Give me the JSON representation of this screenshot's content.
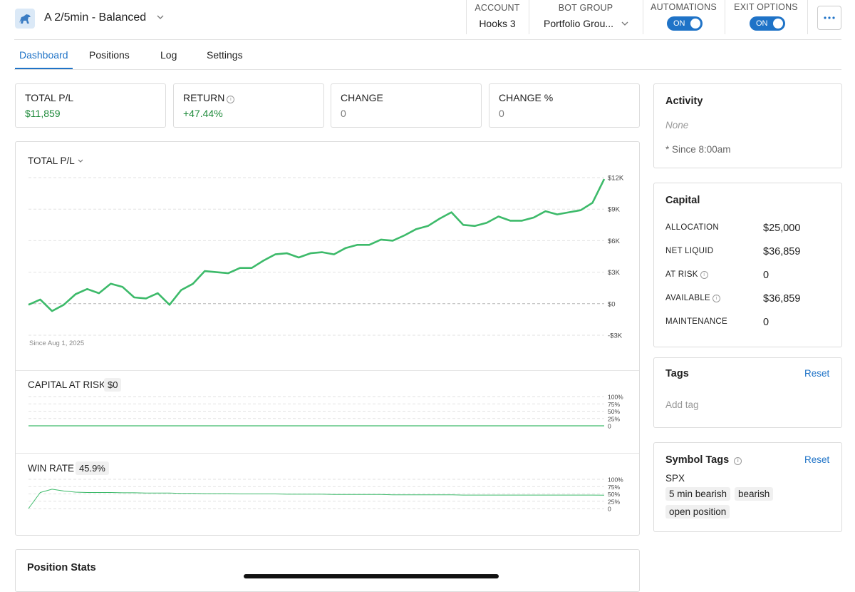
{
  "header": {
    "title": "A 2/5min - Balanced",
    "account_label": "ACCOUNT",
    "account": "Hooks 3",
    "bot_group_label": "BOT GROUP",
    "bot_group": "Portfolio Grou...",
    "automations_label": "AUTOMATIONS",
    "automations": "ON",
    "exit_options_label": "EXIT OPTIONS",
    "exit_options": "ON"
  },
  "tabs": [
    "Dashboard",
    "Positions",
    "Log",
    "Settings"
  ],
  "stats": [
    {
      "label": "TOTAL P/L",
      "value": "$11,859"
    },
    {
      "label": "RETURN",
      "value": "+47.44%"
    },
    {
      "label": "CHANGE",
      "value": "0"
    },
    {
      "label": "CHANGE %",
      "value": "0"
    }
  ],
  "pl_chart": {
    "type": "line",
    "title": "TOTAL P/L",
    "note": "Since Aug 1, 2025",
    "color": "#3dba6a",
    "ylim": [
      -3000,
      12000
    ],
    "yticks": [
      {
        "value": 12000,
        "label": "$12K"
      },
      {
        "value": 9000,
        "label": "$9K"
      },
      {
        "value": 6000,
        "label": "$6K"
      },
      {
        "value": 3000,
        "label": "$3K"
      },
      {
        "value": 0,
        "label": "$0"
      },
      {
        "value": -3000,
        "label": "-$3K"
      }
    ],
    "values": [
      -100,
      400,
      -700,
      -100,
      900,
      1400,
      1000,
      1900,
      1600,
      600,
      500,
      1000,
      -100,
      1300,
      1900,
      3100,
      3000,
      2900,
      3400,
      3400,
      4100,
      4700,
      4800,
      4400,
      4800,
      4900,
      4700,
      5300,
      5600,
      5600,
      6100,
      6000,
      6500,
      7100,
      7400,
      8100,
      8700,
      7500,
      7400,
      7700,
      8300,
      7900,
      7900,
      8200,
      8800,
      8500,
      8700,
      8900,
      9600,
      11859
    ]
  },
  "risk_chart": {
    "type": "line",
    "title": "CAPITAL AT RISK",
    "badge": "$0",
    "color": "#3dba6a",
    "ylim": [
      0,
      100
    ],
    "yticks": [
      {
        "value": 100,
        "label": "100%"
      },
      {
        "value": 75,
        "label": "75%"
      },
      {
        "value": 50,
        "label": "50%"
      },
      {
        "value": 25,
        "label": "25%"
      },
      0
    ],
    "values": [
      0,
      0,
      0,
      0,
      0,
      0,
      0,
      0,
      0,
      0
    ]
  },
  "win_chart": {
    "type": "line",
    "title": "WIN RATE",
    "badge": "45.9%",
    "color": "#3dba6a",
    "ylim": [
      0,
      100
    ],
    "yticks": [
      {
        "value": 100,
        "label": "100%"
      },
      {
        "value": 75,
        "label": "75%"
      },
      {
        "value": 50,
        "label": "50%"
      },
      {
        "value": 25,
        "label": "25%"
      },
      0
    ],
    "values": [
      0,
      55,
      66,
      60,
      56,
      55,
      55,
      55,
      54,
      54,
      53,
      53,
      53,
      52,
      52,
      51,
      51,
      51,
      50,
      50,
      50,
      50,
      49,
      49,
      49,
      49,
      48,
      48,
      48,
      48,
      48,
      47,
      47,
      47,
      47,
      47,
      47,
      46,
      46,
      46,
      46,
      46,
      46,
      46,
      46,
      46,
      46,
      46,
      46,
      45.9
    ]
  },
  "activity": {
    "title": "Activity",
    "empty": "None",
    "note": "* Since 8:00am"
  },
  "capital": {
    "title": "Capital",
    "rows": [
      {
        "label": "ALLOCATION",
        "value": "$25,000"
      },
      {
        "label": "NET LIQUID",
        "value": "$36,859"
      },
      {
        "label": "AT RISK",
        "value": "0"
      },
      {
        "label": "AVAILABLE",
        "value": "$36,859"
      },
      {
        "label": "MAINTENANCE",
        "value": "0"
      }
    ]
  },
  "tags": {
    "title": "Tags",
    "reset": "Reset",
    "placeholder": "Add tag"
  },
  "symbol_tags": {
    "title": "Symbol Tags",
    "reset": "Reset",
    "symbol": "SPX",
    "tags": [
      "5 min bearish",
      "bearish",
      "open position"
    ]
  },
  "position_stats": {
    "title": "Position Stats"
  }
}
